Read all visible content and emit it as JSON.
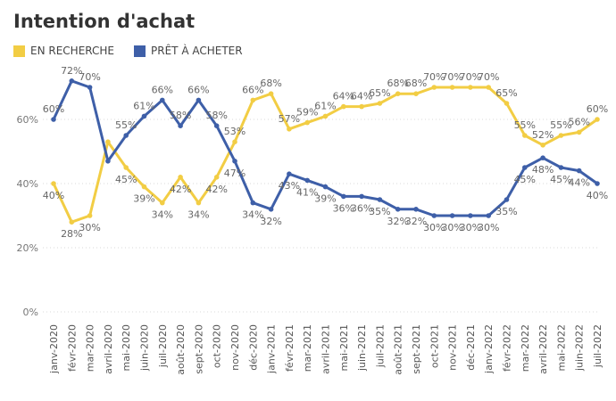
{
  "chart_data": {
    "type": "line",
    "title": "Intention d'achat",
    "categories": [
      "janv-2020",
      "févr-2020",
      "mar-2020",
      "avril-2020",
      "mai-2020",
      "juin-2020",
      "juil-2020",
      "août-2020",
      "sept-2020",
      "oct-2020",
      "nov-2020",
      "déc-2020",
      "janv-2021",
      "févr-2021",
      "mar-2021",
      "avril-2021",
      "mai-2021",
      "juin-2021",
      "juil-2021",
      "août-2021",
      "sept-2021",
      "oct-2021",
      "nov-2021",
      "déc-2021",
      "janv-2022",
      "févr-2022",
      "mar-2022",
      "avril-2022",
      "mai-2022",
      "juin-2022",
      "juil-2022"
    ],
    "series": [
      {
        "name": "EN RECHERCHE",
        "color": "#F2CD44",
        "values": [
          40,
          28,
          30,
          53,
          45,
          39,
          34,
          42,
          34,
          42,
          53,
          66,
          68,
          57,
          59,
          61,
          64,
          64,
          65,
          68,
          68,
          70,
          70,
          70,
          70,
          65,
          55,
          52,
          55,
          56,
          60
        ],
        "labels": [
          "40%",
          "28%",
          "30%",
          "",
          "45%",
          "39%",
          "34%",
          "42%",
          "34%",
          "42%",
          "53%",
          "66%",
          "68%",
          "57%",
          "59%",
          "61%",
          "64%",
          "64%",
          "65%",
          "68%",
          "68%",
          "70%",
          "70%",
          "70%",
          "70%",
          "65%",
          "55%",
          "52%",
          "55%",
          "56%",
          "60%"
        ]
      },
      {
        "name": "PRÊT À ACHETER",
        "color": "#3E5FA8",
        "values": [
          60,
          72,
          70,
          47,
          55,
          61,
          66,
          58,
          66,
          58,
          47,
          34,
          32,
          43,
          41,
          39,
          36,
          36,
          35,
          32,
          32,
          30,
          30,
          30,
          30,
          35,
          45,
          48,
          45,
          44,
          40
        ],
        "labels": [
          "60%",
          "72%",
          "70%",
          "",
          "55%",
          "61%",
          "66%",
          "58%",
          "66%",
          "58%",
          "47%",
          "34%",
          "32%",
          "43%",
          "41%",
          "39%",
          "36%",
          "36%",
          "35%",
          "32%",
          "32%",
          "30%",
          "30%",
          "30%",
          "30%",
          "35%",
          "45%",
          "48%",
          "45%",
          "44%",
          "40%"
        ]
      }
    ],
    "y_ticks": [
      "0%",
      "20%",
      "40%",
      "60%"
    ],
    "ylim": [
      0,
      75
    ],
    "grid": true,
    "legend_position": "top-left"
  }
}
